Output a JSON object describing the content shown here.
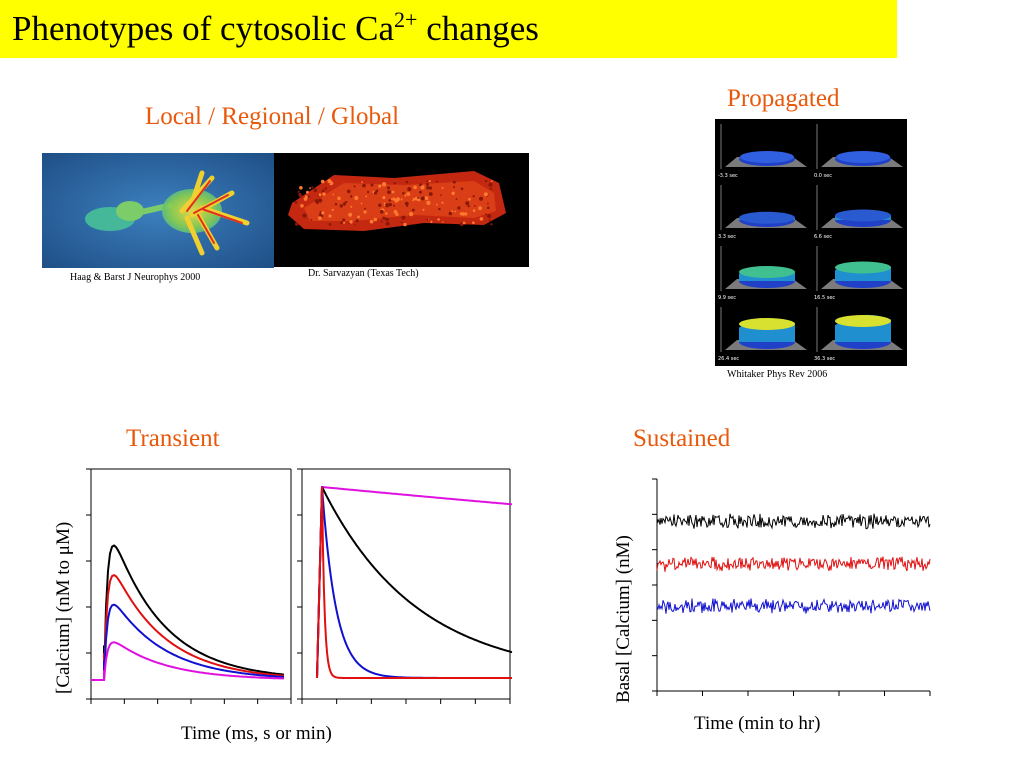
{
  "slide": {
    "title_main": "Phenotypes of cytosolic Ca",
    "title_sup": "2+",
    "title_end": " changes",
    "colors": {
      "title_bg": "#ffff00",
      "heading": "#e8590c"
    }
  },
  "sections": {
    "local": "Local / Regional / Global",
    "propagated": "Propagated",
    "transient": "Transient",
    "sustained": "Sustained"
  },
  "captions": {
    "haag": "Haag & Barst J Neurophys 2000",
    "sarvazyan": "Dr. Sarvazyan (Texas Tech)",
    "whitaker": "Whitaker Phys Rev 2006"
  },
  "propagated_panels": [
    "-3.3 sec",
    "0.0 sec",
    "3.3 sec",
    "6.6 sec",
    "9.9 sec",
    "16.5 sec",
    "26.4 sec",
    "36.3 sec"
  ],
  "chart_data": [
    {
      "type": "line",
      "ylabel": "[Calcium] (nM to μM)",
      "xlabel": "Time (ms, s or min)",
      "series": [
        {
          "color": "#000000",
          "peak": 1.0
        },
        {
          "color": "#e01010",
          "peak": 0.78
        },
        {
          "color": "#1010d0",
          "peak": 0.56
        },
        {
          "color": "#e010e0",
          "peak": 0.28
        }
      ]
    },
    {
      "type": "line",
      "series": [
        {
          "color": "#e010e0",
          "decay": "very slow"
        },
        {
          "color": "#000000",
          "decay": "slow"
        },
        {
          "color": "#1010d0",
          "decay": "fast"
        },
        {
          "color": "#e01010",
          "decay": "very fast"
        }
      ]
    },
    {
      "type": "line",
      "ylabel": "Basal [Calcium] (nM)",
      "xlabel": "Time (min to hr)",
      "series": [
        {
          "color": "#000000",
          "level": 0.8
        },
        {
          "color": "#e01010",
          "level": 0.6
        },
        {
          "color": "#1010d0",
          "level": 0.4
        }
      ]
    }
  ]
}
